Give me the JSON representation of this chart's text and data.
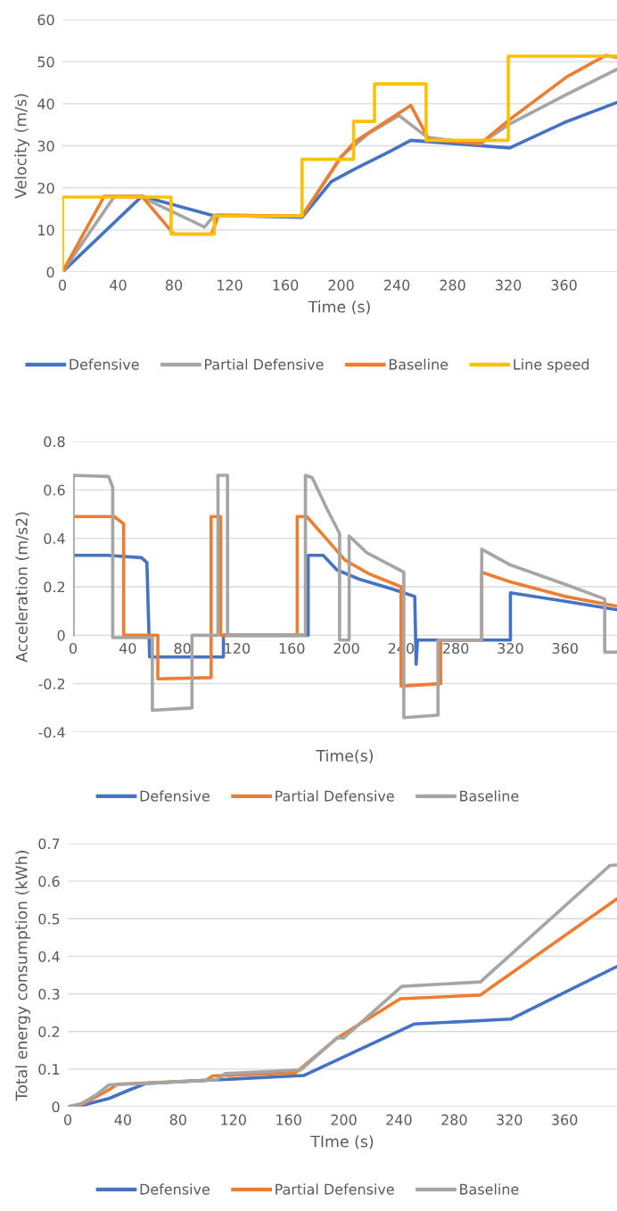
{
  "chart_data": [
    {
      "type": "line",
      "xlabel": "Time (s)",
      "ylabel": "Velocity (m/s)",
      "xlim": [
        0,
        398
      ],
      "xticks": [
        0,
        40,
        80,
        120,
        160,
        200,
        240,
        280,
        320,
        360
      ],
      "ylim": [
        0,
        60
      ],
      "yticks": [
        0,
        10,
        20,
        30,
        40,
        50,
        60
      ],
      "grid": "y",
      "legend": "bottom",
      "series": [
        {
          "name": "Defensive",
          "color": "#4472c4",
          "x": [
            0,
            57,
            107,
            172,
            193,
            210,
            234,
            250,
            321,
            360,
            398
          ],
          "values": [
            0,
            18,
            13.5,
            13,
            21.5,
            24.5,
            28.5,
            31.3,
            29.5,
            35.5,
            40.3
          ]
        },
        {
          "name": "Partial Defensive",
          "color": "#a5a5a5",
          "x": [
            0,
            37,
            57,
            102,
            109,
            172,
            200,
            220,
            241.5,
            262,
            300,
            320,
            360,
            398
          ],
          "values": [
            0,
            17.8,
            17.8,
            10.7,
            13.5,
            13.3,
            27.5,
            33,
            37.2,
            32,
            30.5,
            35,
            41.9,
            48.2
          ]
        },
        {
          "name": "Baseline",
          "color": "#ed7d31",
          "x": [
            0,
            30,
            57,
            80,
            107,
            112,
            172,
            200,
            210,
            250,
            263,
            300,
            320,
            362,
            390,
            398
          ],
          "values": [
            0,
            18,
            18,
            9,
            9,
            13.5,
            13.3,
            27.3,
            31,
            39.6,
            31.5,
            30.5,
            36,
            46.4,
            51.5,
            51
          ]
        },
        {
          "name": "Line speed",
          "color": "#ffc000",
          "x": [
            0,
            0,
            78,
            78,
            109,
            109,
            172,
            172,
            209,
            209,
            224,
            224,
            261,
            261,
            320,
            320,
            398
          ],
          "values": [
            0,
            17.8,
            17.8,
            9,
            9,
            13.3,
            13.3,
            26.8,
            26.8,
            35.8,
            35.8,
            44.7,
            44.7,
            31.3,
            31.3,
            51.3,
            51.3
          ]
        }
      ]
    },
    {
      "type": "line",
      "xlabel": "Time(s)",
      "ylabel": "Acceleration (m/s2)",
      "xlim": [
        0,
        398
      ],
      "xticks": [
        0,
        40,
        80,
        120,
        160,
        200,
        240,
        280,
        320,
        360
      ],
      "ylim": [
        -0.4,
        0.8
      ],
      "yticks": [
        -0.4,
        -0.2,
        0,
        0.2,
        0.4,
        0.6,
        0.8
      ],
      "grid": "y",
      "legend": "bottom",
      "series": [
        {
          "name": "Defensive",
          "color": "#4472c4",
          "x": [
            0,
            25,
            50,
            54,
            56,
            57,
            110,
            110,
            172,
            172,
            183,
            193,
            210,
            234,
            250,
            251,
            252,
            320,
            320,
            360,
            398
          ],
          "values": [
            0.33,
            0.33,
            0.32,
            0.3,
            -0.09,
            -0.09,
            -0.09,
            0,
            0,
            0.33,
            0.33,
            0.27,
            0.23,
            0.19,
            0.16,
            -0.12,
            -0.02,
            -0.02,
            0.175,
            0.14,
            0.105
          ]
        },
        {
          "name": "Partial Defensive",
          "color": "#ed7d31",
          "x": [
            0,
            30,
            37,
            37,
            62,
            62,
            101,
            101,
            108,
            108,
            164,
            164,
            171,
            185,
            199,
            216,
            240,
            240,
            269,
            269,
            299,
            299,
            320,
            360,
            398
          ],
          "values": [
            0.49,
            0.49,
            0.46,
            0,
            0,
            -0.18,
            -0.175,
            0.49,
            0.49,
            0,
            0,
            0.49,
            0.49,
            0.4,
            0.31,
            0.255,
            0.2,
            -0.21,
            -0.2,
            -0.02,
            -0.02,
            0.26,
            0.22,
            0.16,
            0.12
          ]
        },
        {
          "name": "Baseline",
          "color": "#a5a5a5",
          "x": [
            0,
            0,
            26,
            29,
            29,
            58,
            58,
            87,
            87,
            106,
            106,
            113,
            113,
            170,
            170,
            175,
            185,
            195,
            195,
            202,
            202,
            215,
            242,
            242,
            267,
            267,
            299,
            299,
            320,
            360,
            389,
            389,
            398
          ],
          "values": [
            0,
            0.66,
            0.655,
            0.61,
            -0.01,
            -0.01,
            -0.31,
            -0.3,
            0,
            0,
            0.66,
            0.66,
            0,
            0,
            0.66,
            0.65,
            0.53,
            0.42,
            -0.02,
            -0.02,
            0.41,
            0.34,
            0.26,
            -0.34,
            -0.33,
            -0.02,
            -0.02,
            0.355,
            0.29,
            0.21,
            0.15,
            -0.07,
            -0.07
          ]
        }
      ]
    },
    {
      "type": "line",
      "xlabel": "TIme (s)",
      "ylabel": "Total energy consumption (kWh)",
      "xlim": [
        0,
        398
      ],
      "xticks": [
        0,
        40,
        80,
        120,
        160,
        200,
        240,
        280,
        320,
        360
      ],
      "ylim": [
        0,
        0.7
      ],
      "yticks": [
        0,
        0.1,
        0.2,
        0.3,
        0.4,
        0.5,
        0.6,
        0.7
      ],
      "grid": "y",
      "legend": "bottom",
      "series": [
        {
          "name": "Defensive",
          "color": "#4472c4",
          "x": [
            0,
            10,
            30,
            45,
            57,
            100,
            171,
            251,
            321,
            398
          ],
          "values": [
            0,
            0.003,
            0.022,
            0.045,
            0.062,
            0.07,
            0.083,
            0.22,
            0.233,
            0.373
          ]
        },
        {
          "name": "Partial Defensive",
          "color": "#ed7d31",
          "x": [
            0,
            10,
            30,
            36,
            100,
            105,
            165,
            195,
            241,
            299,
            398
          ],
          "values": [
            0,
            0.005,
            0.045,
            0.06,
            0.07,
            0.082,
            0.09,
            0.182,
            0.287,
            0.297,
            0.553
          ]
        },
        {
          "name": "Baseline",
          "color": "#a5a5a5",
          "x": [
            0,
            10,
            20,
            30,
            57,
            108,
            114,
            169,
            195,
            200,
            242,
            299,
            393,
            398
          ],
          "values": [
            0,
            0.008,
            0.03,
            0.058,
            0.062,
            0.072,
            0.088,
            0.098,
            0.183,
            0.183,
            0.32,
            0.332,
            0.642,
            0.643
          ]
        }
      ]
    }
  ]
}
